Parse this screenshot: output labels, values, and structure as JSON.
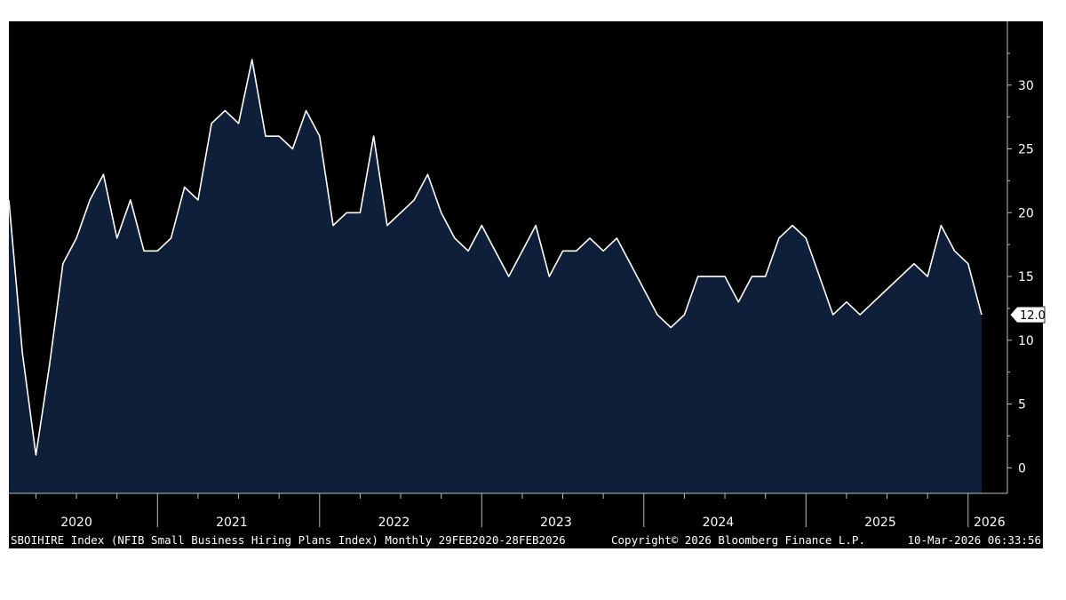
{
  "colors": {
    "background": "#000000",
    "area_fill": "#0f1f3a",
    "line": "#ffffff",
    "text": "#ffffff",
    "axis": "#bbbbbb"
  },
  "footer": {
    "left": "SBOIHIRE Index (NFIB Small Business Hiring Plans Index) Monthly 29FEB2020-28FEB2026",
    "middle": "Copyright© 2026 Bloomberg Finance L.P.",
    "right": "10-Mar-2026 06:33:56"
  },
  "last_value_label": "12.0",
  "chart_data": {
    "type": "area",
    "title": "",
    "xlabel": "",
    "ylabel": "",
    "ylim": [
      -2,
      35
    ],
    "yticks": [
      0,
      5,
      10,
      15,
      20,
      25,
      30
    ],
    "year_labels": [
      "2020",
      "2021",
      "2022",
      "2023",
      "2024",
      "2025",
      "2026"
    ],
    "x_start": "2020-02",
    "x_end": "2026-02",
    "legend": "none",
    "grid": false,
    "series": [
      {
        "values": [
          21,
          9,
          1,
          8,
          16,
          18,
          21,
          23,
          18,
          21,
          17,
          17,
          18,
          22,
          21,
          27,
          28,
          27,
          32,
          26,
          26,
          25,
          28,
          26,
          19,
          20,
          20,
          26,
          19,
          20,
          21,
          23,
          20,
          18,
          17,
          19,
          17,
          15,
          17,
          19,
          15,
          17,
          17,
          18,
          17,
          18,
          16,
          14,
          12,
          11,
          12,
          15,
          15,
          15,
          13,
          15,
          15,
          18,
          19,
          18,
          15,
          12,
          13,
          12,
          13,
          14,
          15,
          16,
          15,
          19,
          17,
          16,
          12
        ]
      }
    ]
  }
}
